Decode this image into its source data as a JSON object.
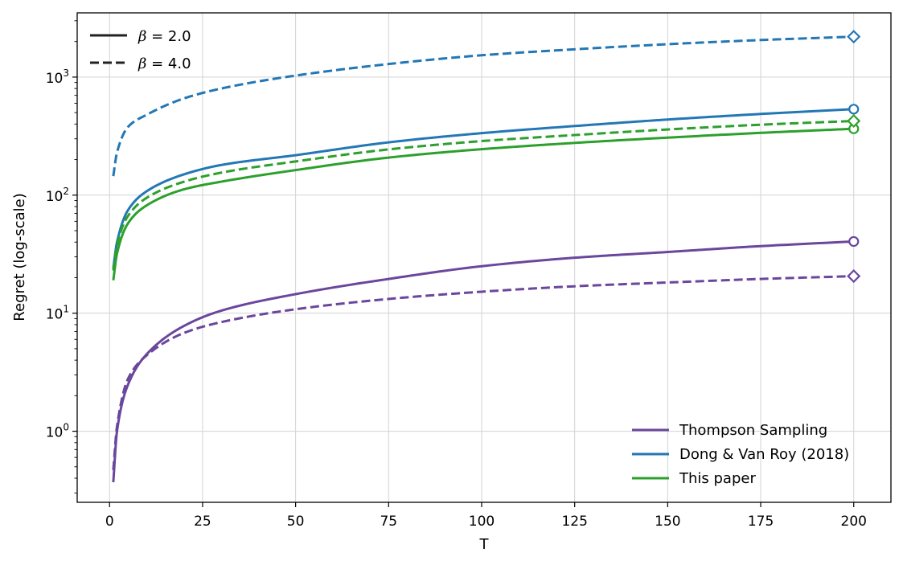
{
  "chart_data": {
    "type": "line",
    "xlabel": "T",
    "ylabel": "Regret (log-scale)",
    "xlim": [
      -8.7,
      210
    ],
    "ylim": [
      0.25,
      3500
    ],
    "yscale": "log",
    "grid": true,
    "x_ticks": [
      0,
      25,
      50,
      75,
      100,
      125,
      150,
      175,
      200
    ],
    "y_ticks": [
      1,
      10,
      100,
      1000
    ],
    "y_tick_labels": [
      {
        "base": "10",
        "exp": "0"
      },
      {
        "base": "10",
        "exp": "1"
      },
      {
        "base": "10",
        "exp": "2"
      },
      {
        "base": "10",
        "exp": "3"
      }
    ],
    "style_legend": {
      "position": "top-left",
      "entries": [
        {
          "label_symbol": "β",
          "label_rest": " = 2.0",
          "linestyle": "solid"
        },
        {
          "label_symbol": "β",
          "label_rest": " = 4.0",
          "linestyle": "dashed"
        }
      ]
    },
    "method_legend": {
      "position": "lower-right",
      "entries": [
        {
          "label": "Thompson Sampling",
          "color": "#6a479c"
        },
        {
          "label": "Dong & Van Roy (2018)",
          "color": "#2377b4"
        },
        {
          "label": "This paper",
          "color": "#2ca02c"
        }
      ]
    },
    "series": [
      {
        "method": "Thompson Sampling",
        "beta": 2.0,
        "color": "#6a479c",
        "linestyle": "solid",
        "end_marker": "circle",
        "x": [
          1,
          2,
          5,
          10,
          20,
          30,
          50,
          75,
          100,
          125,
          150,
          175,
          200
        ],
        "y": [
          0.37,
          1.0,
          2.5,
          4.5,
          7.8,
          10.5,
          14.5,
          19.5,
          25.0,
          29.5,
          33.0,
          37.0,
          40.5
        ]
      },
      {
        "method": "Thompson Sampling",
        "beta": 4.0,
        "color": "#6a479c",
        "linestyle": "dashed",
        "end_marker": "diamond",
        "x": [
          1,
          2,
          5,
          10,
          20,
          30,
          50,
          75,
          100,
          125,
          150,
          175,
          200
        ],
        "y": [
          0.47,
          1.1,
          2.8,
          4.4,
          6.8,
          8.4,
          10.8,
          13.2,
          15.2,
          16.9,
          18.2,
          19.5,
          20.6
        ]
      },
      {
        "method": "Dong & Van Roy (2018)",
        "beta": 2.0,
        "color": "#2377b4",
        "linestyle": "solid",
        "end_marker": "circle",
        "x": [
          1,
          2,
          5,
          10,
          20,
          30,
          50,
          75,
          100,
          125,
          150,
          175,
          200
        ],
        "y": [
          24,
          40,
          75,
          108,
          150,
          180,
          218,
          280,
          335,
          385,
          437,
          487,
          535
        ]
      },
      {
        "method": "Dong & Van Roy (2018)",
        "beta": 4.0,
        "color": "#2377b4",
        "linestyle": "dashed",
        "end_marker": "diamond",
        "x": [
          1,
          2,
          5,
          10,
          20,
          30,
          50,
          75,
          100,
          125,
          150,
          175,
          200
        ],
        "y": [
          145,
          230,
          380,
          480,
          660,
          800,
          1030,
          1290,
          1530,
          1720,
          1900,
          2060,
          2200
        ]
      },
      {
        "method": "This paper",
        "beta": 2.0,
        "color": "#2ca02c",
        "linestyle": "solid",
        "end_marker": "circle",
        "x": [
          1,
          2,
          5,
          10,
          20,
          30,
          50,
          75,
          100,
          125,
          150,
          175,
          200
        ],
        "y": [
          19,
          32,
          58,
          82,
          112,
          130,
          163,
          208,
          245,
          277,
          307,
          337,
          365
        ]
      },
      {
        "method": "This paper",
        "beta": 4.0,
        "color": "#2ca02c",
        "linestyle": "dashed",
        "end_marker": "diamond",
        "x": [
          1,
          2,
          5,
          10,
          20,
          30,
          50,
          75,
          100,
          125,
          150,
          175,
          200
        ],
        "y": [
          23,
          38,
          67,
          95,
          130,
          155,
          193,
          244,
          287,
          323,
          360,
          395,
          425
        ]
      }
    ]
  }
}
